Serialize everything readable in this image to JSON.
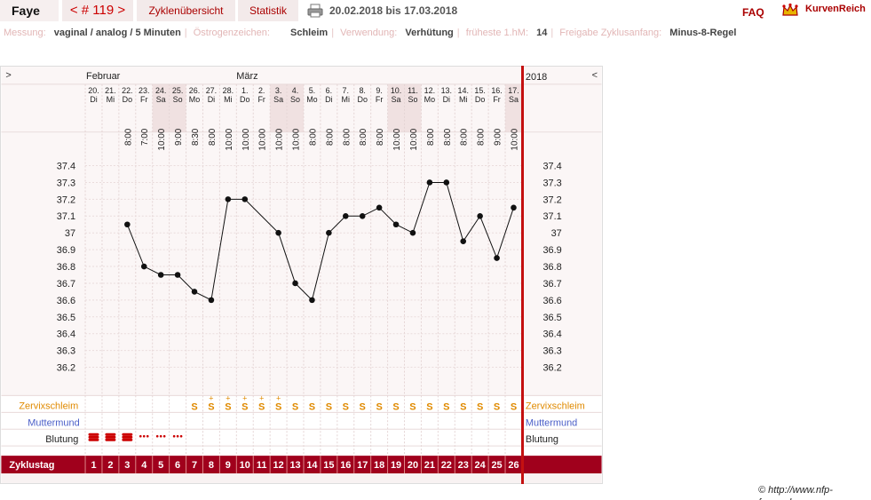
{
  "header": {
    "user": "Faye",
    "cycle_nav": "< # 119 >",
    "tab_overview": "Zyklenübersicht",
    "tab_stats": "Statistik",
    "date_range": "20.02.2018 bis 17.03.2018",
    "faq": "FAQ",
    "logo": "KurvenReich",
    "print_icon": "printer-icon",
    "logo_icon": "crown-icon"
  },
  "info": {
    "messung_label": "Messung:",
    "messung": "vaginal / analog / 5 Minuten",
    "oestrogen_label": "Östrogenzeichen:",
    "oestrogen": "Schleim",
    "verwendung_label": "Verwendung:",
    "verwendung": "Verhütung",
    "frueheste_label": "früheste 1.hM:",
    "frueheste": "14",
    "freigabe_label": "Freigabe Zyklusanfang:",
    "freigabe": "Minus-8-Regel"
  },
  "chart": {
    "nav_left": ">",
    "nav_right": "<",
    "month1": "Februar",
    "month2": "März",
    "year": "2018",
    "row_labels": {
      "cervix": "Zervixschleim",
      "mouth": "Muttermund",
      "bleeding": "Blutung",
      "cycle_day": "Zyklustag"
    },
    "accent": "#a0001c",
    "cervix_color": "#e08a00",
    "mouth_color": "#4a5ec8"
  },
  "chart_data": {
    "type": "line",
    "ylim": [
      36.1,
      37.5
    ],
    "yticks": [
      "37.4",
      "37.3",
      "37.2",
      "37.1",
      "37",
      "36.9",
      "36.8",
      "36.7",
      "36.6",
      "36.5",
      "36.4",
      "36.3",
      "36.2"
    ],
    "days": [
      {
        "date": "20.",
        "wd": "Di",
        "time": "",
        "temp": null,
        "cycle": "1",
        "cervix": "",
        "bleed": "heavy"
      },
      {
        "date": "21.",
        "wd": "Mi",
        "time": "",
        "temp": null,
        "cycle": "2",
        "cervix": "",
        "bleed": "heavy"
      },
      {
        "date": "22.",
        "wd": "Do",
        "time": "8:00",
        "temp": 37.05,
        "cycle": "3",
        "cervix": "",
        "bleed": "heavy"
      },
      {
        "date": "23.",
        "wd": "Fr",
        "time": "7:00",
        "temp": 36.8,
        "cycle": "4",
        "cervix": "",
        "bleed": "light"
      },
      {
        "date": "24.",
        "wd": "Sa",
        "time": "10:00",
        "temp": 36.75,
        "cycle": "5",
        "cervix": "",
        "bleed": "light"
      },
      {
        "date": "25.",
        "wd": "So",
        "time": "9:00",
        "temp": 36.75,
        "cycle": "6",
        "cervix": "",
        "bleed": "light"
      },
      {
        "date": "26.",
        "wd": "Mo",
        "time": "8:30",
        "temp": 36.65,
        "cycle": "7",
        "cervix": "S",
        "bleed": ""
      },
      {
        "date": "27.",
        "wd": "Di",
        "time": "8:00",
        "temp": 36.6,
        "cycle": "8",
        "cervix": "S+",
        "bleed": ""
      },
      {
        "date": "28.",
        "wd": "Mi",
        "time": "10:00",
        "temp": 37.2,
        "cycle": "9",
        "cervix": "S+",
        "bleed": ""
      },
      {
        "date": "1.",
        "wd": "Do",
        "time": "10:00",
        "temp": 37.2,
        "cycle": "10",
        "cervix": "S+",
        "bleed": ""
      },
      {
        "date": "2.",
        "wd": "Fr",
        "time": "10:00",
        "temp": null,
        "cycle": "11",
        "cervix": "S+",
        "bleed": ""
      },
      {
        "date": "3.",
        "wd": "Sa",
        "time": "10:00",
        "temp": 37.0,
        "cycle": "12",
        "cervix": "S+",
        "bleed": ""
      },
      {
        "date": "4.",
        "wd": "So",
        "time": "10:00",
        "temp": 36.7,
        "cycle": "13",
        "cervix": "S",
        "bleed": ""
      },
      {
        "date": "5.",
        "wd": "Mo",
        "time": "8:00",
        "temp": 36.6,
        "cycle": "14",
        "cervix": "S",
        "bleed": ""
      },
      {
        "date": "6.",
        "wd": "Di",
        "time": "8:00",
        "temp": 37.0,
        "cycle": "15",
        "cervix": "S",
        "bleed": ""
      },
      {
        "date": "7.",
        "wd": "Mi",
        "time": "8:00",
        "temp": 37.1,
        "cycle": "16",
        "cervix": "S",
        "bleed": ""
      },
      {
        "date": "8.",
        "wd": "Do",
        "time": "8:00",
        "temp": 37.1,
        "cycle": "17",
        "cervix": "S",
        "bleed": ""
      },
      {
        "date": "9.",
        "wd": "Fr",
        "time": "8:00",
        "temp": 37.15,
        "cycle": "18",
        "cervix": "S",
        "bleed": ""
      },
      {
        "date": "10.",
        "wd": "Sa",
        "time": "10:00",
        "temp": 37.05,
        "cycle": "19",
        "cervix": "S",
        "bleed": ""
      },
      {
        "date": "11.",
        "wd": "So",
        "time": "10:00",
        "temp": 37.0,
        "cycle": "20",
        "cervix": "S",
        "bleed": ""
      },
      {
        "date": "12.",
        "wd": "Mo",
        "time": "8:00",
        "temp": 37.3,
        "cycle": "21",
        "cervix": "S",
        "bleed": ""
      },
      {
        "date": "13.",
        "wd": "Di",
        "time": "8:00",
        "temp": 37.3,
        "cycle": "22",
        "cervix": "S",
        "bleed": ""
      },
      {
        "date": "14.",
        "wd": "Mi",
        "time": "8:00",
        "temp": 36.95,
        "cycle": "23",
        "cervix": "S",
        "bleed": ""
      },
      {
        "date": "15.",
        "wd": "Do",
        "time": "8:00",
        "temp": 37.1,
        "cycle": "24",
        "cervix": "S",
        "bleed": ""
      },
      {
        "date": "16.",
        "wd": "Fr",
        "time": "9:00",
        "temp": 36.85,
        "cycle": "25",
        "cervix": "S",
        "bleed": ""
      },
      {
        "date": "17.",
        "wd": "Sa",
        "time": "10:00",
        "temp": 37.15,
        "cycle": "26",
        "cervix": "S",
        "bleed": ""
      }
    ]
  },
  "footer": {
    "copyright": "© http://www.nfp-forum.de"
  }
}
